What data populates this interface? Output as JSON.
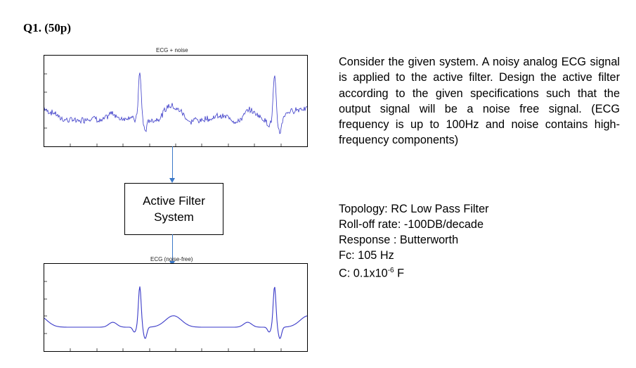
{
  "question": {
    "label": "Q1",
    "points": ". (50p)"
  },
  "plot_top": {
    "title": "ECG + noise"
  },
  "plot_bottom": {
    "title": "ECG (noise-free)"
  },
  "filter_box": {
    "line1": "Active Filter",
    "line2": "System"
  },
  "description": "Consider the given system. A noisy analog ECG signal is applied to the active filter. Design the active filter according to the given specifications such that the output signal will be a noise free signal. (ECG frequency is up to 100Hz and noise contains high-frequency components)",
  "specs": {
    "topology": "Topology: RC Low Pass Filter",
    "rolloff": "Roll-off rate: -100DB/decade",
    "response": "Response : Butterworth",
    "fc": "Fc: 105 Hz",
    "c_prefix": "C: 0.1x10",
    "c_exp": "-6",
    "c_suffix": " F"
  },
  "colors": {
    "signal": "#3a3ac8",
    "arrow": "#3b78c8"
  }
}
